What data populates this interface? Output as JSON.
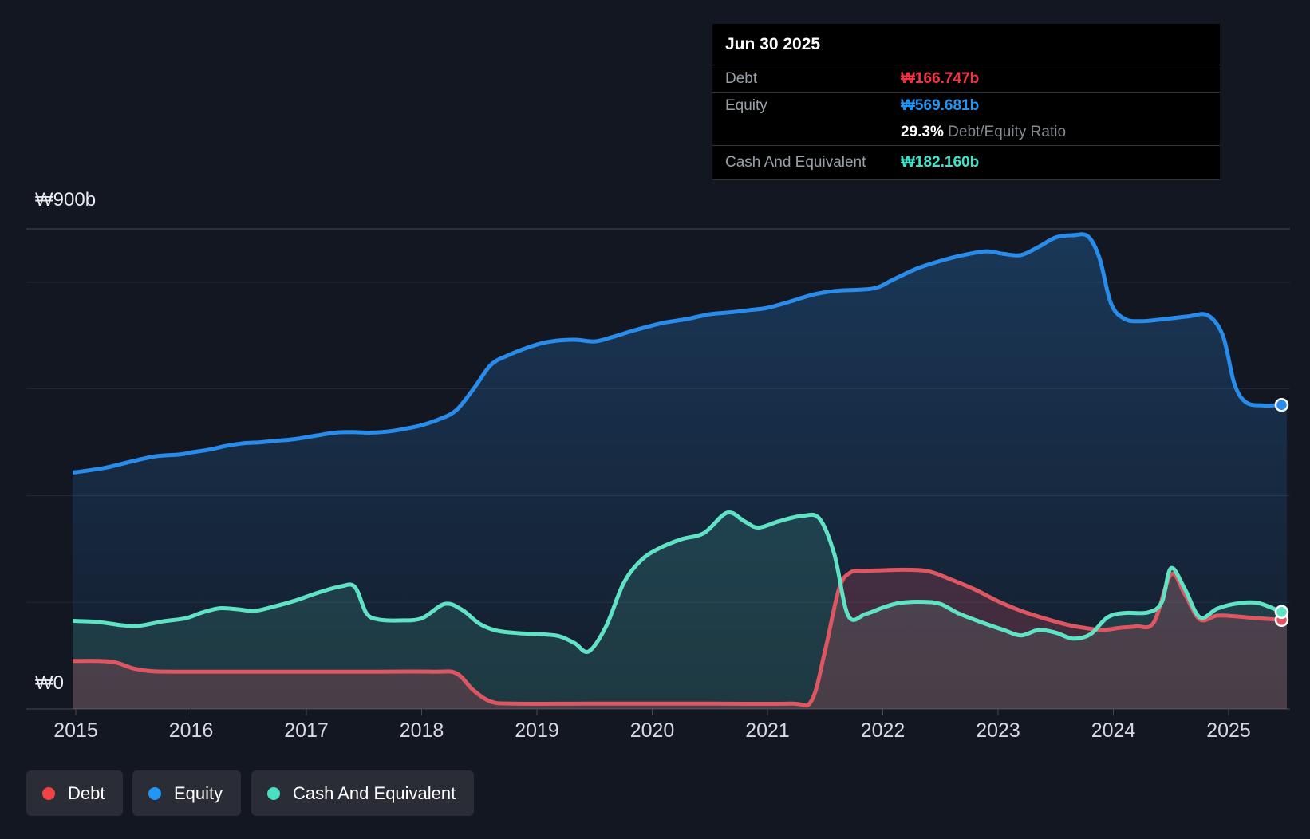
{
  "tooltip": {
    "title": "Jun 30 2025",
    "rows": [
      {
        "label": "Debt",
        "value": "₩166.747b",
        "color": "#f23645"
      },
      {
        "label": "Equity",
        "value": "₩569.681b",
        "color": "#2196f3"
      },
      {
        "label": "",
        "ratio_num": "29.3%",
        "ratio_text": " Debt/Equity Ratio"
      },
      {
        "label": "Cash And Equivalent",
        "value": "₩182.160b",
        "color": "#42e2c8"
      }
    ]
  },
  "legend": {
    "items": [
      {
        "label": "Debt",
        "color": "#ef4444"
      },
      {
        "label": "Equity",
        "color": "#2196f3"
      },
      {
        "label": "Cash And Equivalent",
        "color": "#4adec2"
      }
    ]
  },
  "axis": {
    "y_top_label": "₩900b",
    "y_zero_label": "₩0",
    "x_ticks": [
      "2015",
      "2016",
      "2017",
      "2018",
      "2019",
      "2020",
      "2021",
      "2022",
      "2023",
      "2024",
      "2025"
    ]
  },
  "chart_data": {
    "type": "area",
    "title": "",
    "xlabel": "",
    "ylabel": "",
    "x_range": [
      2015,
      2025.5
    ],
    "ylim": [
      0,
      900
    ],
    "y_unit": "billion KRW",
    "gridlines_y": [
      900,
      800,
      600,
      400,
      200,
      0
    ],
    "legend_position": "bottom-left",
    "series": [
      {
        "name": "Equity",
        "color": "#2a8cea",
        "final_label": "₩569.681b",
        "points": [
          [
            2015.0,
            444
          ],
          [
            2015.25,
            452
          ],
          [
            2015.5,
            465
          ],
          [
            2015.7,
            474
          ],
          [
            2015.9,
            477
          ],
          [
            2016.0,
            481
          ],
          [
            2016.15,
            486
          ],
          [
            2016.3,
            493
          ],
          [
            2016.45,
            498
          ],
          [
            2016.6,
            500
          ],
          [
            2016.75,
            503
          ],
          [
            2016.9,
            506
          ],
          [
            2017.1,
            513
          ],
          [
            2017.25,
            518
          ],
          [
            2017.4,
            519
          ],
          [
            2017.55,
            518
          ],
          [
            2017.7,
            520
          ],
          [
            2017.85,
            525
          ],
          [
            2018.0,
            532
          ],
          [
            2018.15,
            543
          ],
          [
            2018.3,
            560
          ],
          [
            2018.45,
            600
          ],
          [
            2018.6,
            645
          ],
          [
            2018.75,
            663
          ],
          [
            2018.9,
            676
          ],
          [
            2019.05,
            686
          ],
          [
            2019.2,
            691
          ],
          [
            2019.35,
            692
          ],
          [
            2019.5,
            689
          ],
          [
            2019.65,
            697
          ],
          [
            2019.8,
            707
          ],
          [
            2019.95,
            716
          ],
          [
            2020.1,
            724
          ],
          [
            2020.3,
            731
          ],
          [
            2020.5,
            740
          ],
          [
            2020.7,
            744
          ],
          [
            2020.85,
            748
          ],
          [
            2021.0,
            752
          ],
          [
            2021.2,
            764
          ],
          [
            2021.4,
            777
          ],
          [
            2021.6,
            784
          ],
          [
            2021.8,
            786
          ],
          [
            2021.95,
            790
          ],
          [
            2022.1,
            806
          ],
          [
            2022.3,
            826
          ],
          [
            2022.5,
            840
          ],
          [
            2022.7,
            851
          ],
          [
            2022.9,
            858
          ],
          [
            2023.05,
            853
          ],
          [
            2023.2,
            851
          ],
          [
            2023.35,
            866
          ],
          [
            2023.5,
            884
          ],
          [
            2023.65,
            888
          ],
          [
            2023.78,
            886
          ],
          [
            2023.88,
            845
          ],
          [
            2023.98,
            760
          ],
          [
            2024.1,
            731
          ],
          [
            2024.25,
            727
          ],
          [
            2024.45,
            731
          ],
          [
            2024.65,
            736
          ],
          [
            2024.82,
            738
          ],
          [
            2024.95,
            700
          ],
          [
            2025.05,
            610
          ],
          [
            2025.15,
            575
          ],
          [
            2025.3,
            569
          ],
          [
            2025.46,
            570
          ]
        ]
      },
      {
        "name": "Cash And Equivalent",
        "color": "#5fe3c4",
        "final_label": "₩182.160b",
        "points": [
          [
            2015.0,
            165
          ],
          [
            2015.2,
            163
          ],
          [
            2015.4,
            157
          ],
          [
            2015.55,
            156
          ],
          [
            2015.75,
            164
          ],
          [
            2015.95,
            170
          ],
          [
            2016.1,
            181
          ],
          [
            2016.25,
            189
          ],
          [
            2016.4,
            187
          ],
          [
            2016.55,
            184
          ],
          [
            2016.7,
            191
          ],
          [
            2016.9,
            203
          ],
          [
            2017.1,
            218
          ],
          [
            2017.3,
            230
          ],
          [
            2017.42,
            229
          ],
          [
            2017.52,
            180
          ],
          [
            2017.62,
            168
          ],
          [
            2017.8,
            166
          ],
          [
            2018.0,
            170
          ],
          [
            2018.2,
            197
          ],
          [
            2018.35,
            186
          ],
          [
            2018.5,
            160
          ],
          [
            2018.65,
            147
          ],
          [
            2018.85,
            142
          ],
          [
            2019.05,
            140
          ],
          [
            2019.2,
            136
          ],
          [
            2019.33,
            123
          ],
          [
            2019.45,
            108
          ],
          [
            2019.6,
            155
          ],
          [
            2019.75,
            235
          ],
          [
            2019.9,
            278
          ],
          [
            2020.05,
            300
          ],
          [
            2020.25,
            318
          ],
          [
            2020.45,
            330
          ],
          [
            2020.65,
            368
          ],
          [
            2020.8,
            352
          ],
          [
            2020.92,
            340
          ],
          [
            2021.1,
            352
          ],
          [
            2021.3,
            362
          ],
          [
            2021.45,
            357
          ],
          [
            2021.58,
            290
          ],
          [
            2021.7,
            175
          ],
          [
            2021.85,
            178
          ],
          [
            2022.0,
            190
          ],
          [
            2022.15,
            199
          ],
          [
            2022.35,
            201
          ],
          [
            2022.5,
            197
          ],
          [
            2022.65,
            180
          ],
          [
            2022.85,
            163
          ],
          [
            2023.05,
            148
          ],
          [
            2023.2,
            138
          ],
          [
            2023.35,
            148
          ],
          [
            2023.5,
            143
          ],
          [
            2023.65,
            132
          ],
          [
            2023.8,
            140
          ],
          [
            2023.95,
            172
          ],
          [
            2024.1,
            180
          ],
          [
            2024.3,
            181
          ],
          [
            2024.42,
            200
          ],
          [
            2024.5,
            264
          ],
          [
            2024.62,
            225
          ],
          [
            2024.75,
            172
          ],
          [
            2024.9,
            188
          ],
          [
            2025.05,
            197
          ],
          [
            2025.25,
            199
          ],
          [
            2025.46,
            182
          ]
        ]
      },
      {
        "name": "Debt",
        "color": "#dd5661",
        "final_label": "₩166.747b",
        "points": [
          [
            2015.0,
            90
          ],
          [
            2015.2,
            90
          ],
          [
            2015.35,
            87
          ],
          [
            2015.5,
            76
          ],
          [
            2015.65,
            71
          ],
          [
            2015.85,
            70
          ],
          [
            2016.5,
            70
          ],
          [
            2017.5,
            70
          ],
          [
            2018.1,
            70
          ],
          [
            2018.3,
            67
          ],
          [
            2018.45,
            35
          ],
          [
            2018.6,
            14
          ],
          [
            2018.8,
            10
          ],
          [
            2019.5,
            10
          ],
          [
            2020.5,
            10
          ],
          [
            2021.2,
            10
          ],
          [
            2021.38,
            15
          ],
          [
            2021.5,
            110
          ],
          [
            2021.62,
            225
          ],
          [
            2021.72,
            256
          ],
          [
            2021.85,
            259
          ],
          [
            2022.0,
            260
          ],
          [
            2022.2,
            261
          ],
          [
            2022.4,
            258
          ],
          [
            2022.6,
            242
          ],
          [
            2022.8,
            224
          ],
          [
            2023.0,
            202
          ],
          [
            2023.2,
            184
          ],
          [
            2023.4,
            170
          ],
          [
            2023.6,
            158
          ],
          [
            2023.75,
            152
          ],
          [
            2023.9,
            148
          ],
          [
            2024.05,
            152
          ],
          [
            2024.2,
            155
          ],
          [
            2024.35,
            162
          ],
          [
            2024.5,
            252
          ],
          [
            2024.62,
            215
          ],
          [
            2024.75,
            168
          ],
          [
            2024.9,
            175
          ],
          [
            2025.05,
            174
          ],
          [
            2025.2,
            171
          ],
          [
            2025.46,
            167
          ]
        ]
      }
    ]
  }
}
